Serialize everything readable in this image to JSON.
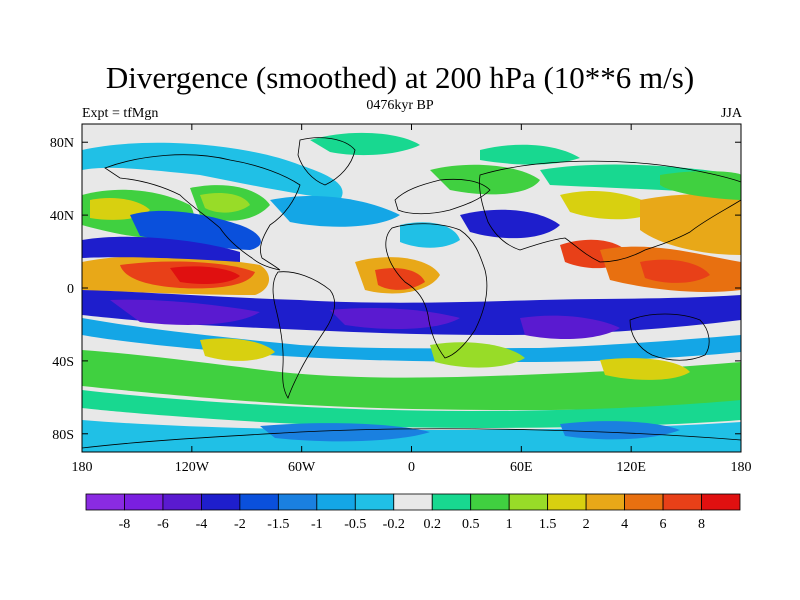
{
  "title": "Divergence (smoothed) at 200 hPa (10**6 m/s)",
  "subtitle_left": "Expt = tfMgn",
  "subtitle_center": "0476kyr BP",
  "subtitle_right": "JJA",
  "map": {
    "lon_range": [
      -180,
      180
    ],
    "lat_range": [
      -90,
      90
    ],
    "x_ticks": [
      {
        "value": -180,
        "label": "180"
      },
      {
        "value": -120,
        "label": "120W"
      },
      {
        "value": -60,
        "label": "60W"
      },
      {
        "value": 0,
        "label": "0"
      },
      {
        "value": 60,
        "label": "60E"
      },
      {
        "value": 120,
        "label": "120E"
      },
      {
        "value": 180,
        "label": "180"
      }
    ],
    "y_ticks": [
      {
        "value": 80,
        "label": "80N"
      },
      {
        "value": 40,
        "label": "40N"
      },
      {
        "value": 0,
        "label": "0"
      },
      {
        "value": -40,
        "label": "40S"
      },
      {
        "value": -80,
        "label": "80S"
      }
    ]
  },
  "colorbar": {
    "colors": [
      "#8a2be2",
      "#7a1fe0",
      "#5a1ad0",
      "#1e1ecc",
      "#0a50dc",
      "#1a80e0",
      "#14a6e6",
      "#20c0e6",
      "#e8e8e8",
      "#18d890",
      "#40d040",
      "#98dc28",
      "#d8d010",
      "#e8a818",
      "#e87010",
      "#e84018",
      "#e01010"
    ],
    "labels": [
      "-8",
      "-6",
      "-4",
      "-2",
      "-1.5",
      "-1",
      "-0.5",
      "-0.2",
      "0.2",
      "0.5",
      "1",
      "1.5",
      "2",
      "4",
      "6",
      "8"
    ]
  }
}
